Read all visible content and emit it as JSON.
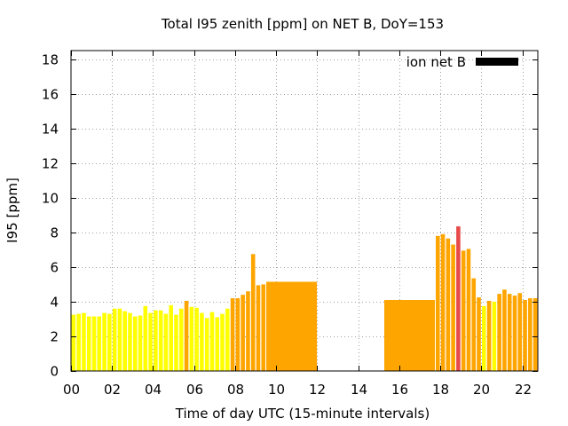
{
  "chart_data": {
    "type": "bar",
    "title": "Total I95 zenith [ppm] on NET B, DoY=153",
    "xlabel": "Time of day UTC (15-minute intervals)",
    "ylabel": "I95 [ppm]",
    "xlim": [
      0,
      22.75
    ],
    "ylim": [
      0,
      18.5
    ],
    "xticks": [
      "00",
      "02",
      "04",
      "06",
      "08",
      "10",
      "12",
      "14",
      "16",
      "18",
      "20",
      "22"
    ],
    "yticks": [
      "0",
      "2",
      "4",
      "6",
      "8",
      "10",
      "12",
      "14",
      "16",
      "18"
    ],
    "grid": true,
    "legend": {
      "position": "top-right",
      "label": "ion net B",
      "color": "#000000"
    },
    "colors": {
      "low": "#ffff00",
      "medium": "#ffa500",
      "high": "#e84a4a"
    },
    "bars": [
      {
        "x": 0.0,
        "w": 0.25,
        "y": 3.25,
        "level": "low"
      },
      {
        "x": 0.25,
        "w": 0.25,
        "y": 3.3,
        "level": "low"
      },
      {
        "x": 0.5,
        "w": 0.25,
        "y": 3.35,
        "level": "low"
      },
      {
        "x": 0.75,
        "w": 0.25,
        "y": 3.15,
        "level": "low"
      },
      {
        "x": 1.0,
        "w": 0.25,
        "y": 3.15,
        "level": "low"
      },
      {
        "x": 1.25,
        "w": 0.25,
        "y": 3.15,
        "level": "low"
      },
      {
        "x": 1.5,
        "w": 0.25,
        "y": 3.35,
        "level": "low"
      },
      {
        "x": 1.75,
        "w": 0.25,
        "y": 3.3,
        "level": "low"
      },
      {
        "x": 2.0,
        "w": 0.25,
        "y": 3.6,
        "level": "low"
      },
      {
        "x": 2.25,
        "w": 0.25,
        "y": 3.6,
        "level": "low"
      },
      {
        "x": 2.5,
        "w": 0.25,
        "y": 3.45,
        "level": "low"
      },
      {
        "x": 2.75,
        "w": 0.25,
        "y": 3.35,
        "level": "low"
      },
      {
        "x": 3.0,
        "w": 0.25,
        "y": 3.15,
        "level": "low"
      },
      {
        "x": 3.25,
        "w": 0.25,
        "y": 3.2,
        "level": "low"
      },
      {
        "x": 3.5,
        "w": 0.25,
        "y": 3.75,
        "level": "low"
      },
      {
        "x": 3.75,
        "w": 0.25,
        "y": 3.35,
        "level": "low"
      },
      {
        "x": 4.0,
        "w": 0.25,
        "y": 3.5,
        "level": "low"
      },
      {
        "x": 4.25,
        "w": 0.25,
        "y": 3.5,
        "level": "low"
      },
      {
        "x": 4.5,
        "w": 0.25,
        "y": 3.3,
        "level": "low"
      },
      {
        "x": 4.75,
        "w": 0.25,
        "y": 3.8,
        "level": "low"
      },
      {
        "x": 5.0,
        "w": 0.25,
        "y": 3.25,
        "level": "low"
      },
      {
        "x": 5.25,
        "w": 0.25,
        "y": 3.6,
        "level": "low"
      },
      {
        "x": 5.5,
        "w": 0.25,
        "y": 4.05,
        "level": "medium"
      },
      {
        "x": 5.75,
        "w": 0.25,
        "y": 3.7,
        "level": "low"
      },
      {
        "x": 6.0,
        "w": 0.25,
        "y": 3.65,
        "level": "low"
      },
      {
        "x": 6.25,
        "w": 0.25,
        "y": 3.35,
        "level": "low"
      },
      {
        "x": 6.5,
        "w": 0.25,
        "y": 3.05,
        "level": "low"
      },
      {
        "x": 6.75,
        "w": 0.25,
        "y": 3.4,
        "level": "low"
      },
      {
        "x": 7.0,
        "w": 0.25,
        "y": 3.1,
        "level": "low"
      },
      {
        "x": 7.25,
        "w": 0.25,
        "y": 3.3,
        "level": "low"
      },
      {
        "x": 7.5,
        "w": 0.25,
        "y": 3.6,
        "level": "low"
      },
      {
        "x": 7.75,
        "w": 0.25,
        "y": 4.2,
        "level": "medium"
      },
      {
        "x": 8.0,
        "w": 0.25,
        "y": 4.2,
        "level": "medium"
      },
      {
        "x": 8.25,
        "w": 0.25,
        "y": 4.4,
        "level": "medium"
      },
      {
        "x": 8.5,
        "w": 0.25,
        "y": 4.6,
        "level": "medium"
      },
      {
        "x": 8.75,
        "w": 0.25,
        "y": 6.75,
        "level": "medium"
      },
      {
        "x": 9.0,
        "w": 0.25,
        "y": 4.95,
        "level": "medium"
      },
      {
        "x": 9.25,
        "w": 0.25,
        "y": 5.0,
        "level": "medium"
      },
      {
        "x": 9.5,
        "w": 2.5,
        "y": 5.15,
        "level": "medium"
      },
      {
        "x": 15.25,
        "w": 2.5,
        "y": 4.1,
        "level": "medium"
      },
      {
        "x": 17.75,
        "w": 0.25,
        "y": 7.8,
        "level": "medium"
      },
      {
        "x": 18.0,
        "w": 0.25,
        "y": 7.9,
        "level": "medium"
      },
      {
        "x": 18.25,
        "w": 0.25,
        "y": 7.65,
        "level": "medium"
      },
      {
        "x": 18.5,
        "w": 0.25,
        "y": 7.3,
        "level": "medium"
      },
      {
        "x": 18.75,
        "w": 0.25,
        "y": 8.35,
        "level": "high"
      },
      {
        "x": 19.0,
        "w": 0.25,
        "y": 6.95,
        "level": "medium"
      },
      {
        "x": 19.25,
        "w": 0.25,
        "y": 7.05,
        "level": "medium"
      },
      {
        "x": 19.5,
        "w": 0.25,
        "y": 5.35,
        "level": "medium"
      },
      {
        "x": 19.75,
        "w": 0.25,
        "y": 4.25,
        "level": "medium"
      },
      {
        "x": 20.0,
        "w": 0.25,
        "y": 3.75,
        "level": "low"
      },
      {
        "x": 20.25,
        "w": 0.25,
        "y": 4.05,
        "level": "medium"
      },
      {
        "x": 20.5,
        "w": 0.25,
        "y": 4.0,
        "level": "low"
      },
      {
        "x": 20.75,
        "w": 0.25,
        "y": 4.45,
        "level": "medium"
      },
      {
        "x": 21.0,
        "w": 0.25,
        "y": 4.7,
        "level": "medium"
      },
      {
        "x": 21.25,
        "w": 0.25,
        "y": 4.45,
        "level": "medium"
      },
      {
        "x": 21.5,
        "w": 0.25,
        "y": 4.35,
        "level": "medium"
      },
      {
        "x": 21.75,
        "w": 0.25,
        "y": 4.5,
        "level": "medium"
      },
      {
        "x": 22.0,
        "w": 0.25,
        "y": 4.1,
        "level": "medium"
      },
      {
        "x": 22.25,
        "w": 0.25,
        "y": 4.2,
        "level": "medium"
      },
      {
        "x": 22.5,
        "w": 0.25,
        "y": 4.2,
        "level": "medium"
      }
    ]
  }
}
